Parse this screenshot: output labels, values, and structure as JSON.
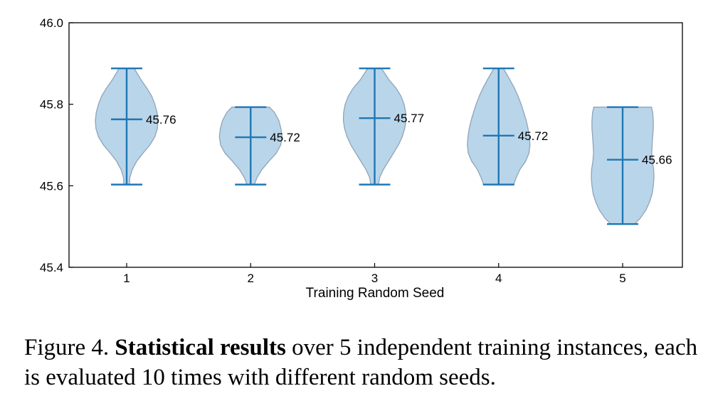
{
  "chart_data": {
    "type": "violin",
    "xlabel": "Training Random Seed",
    "ylabel": "",
    "ylim": [
      45.4,
      46.0
    ],
    "yticks": [
      "45.4",
      "45.6",
      "45.8",
      "46.0"
    ],
    "grid": false,
    "colors": {
      "body_fill": "#b9d5ea",
      "body_edge": "#8fa4b8",
      "lines": "#1f77b4"
    },
    "violins": [
      {
        "category": "1",
        "min": 45.603,
        "max": 45.888,
        "median": 45.763,
        "median_label": "45.76",
        "density": [
          [
            45.603,
            0.09
          ],
          [
            45.62,
            0.1
          ],
          [
            45.64,
            0.18
          ],
          [
            45.66,
            0.32
          ],
          [
            45.68,
            0.52
          ],
          [
            45.7,
            0.74
          ],
          [
            45.72,
            0.9
          ],
          [
            45.74,
            0.98
          ],
          [
            45.76,
            1.0
          ],
          [
            45.78,
            0.97
          ],
          [
            45.8,
            0.9
          ],
          [
            45.82,
            0.8
          ],
          [
            45.84,
            0.64
          ],
          [
            45.86,
            0.46
          ],
          [
            45.888,
            0.24
          ]
        ]
      },
      {
        "category": "2",
        "min": 45.603,
        "max": 45.793,
        "median": 45.719,
        "median_label": "45.72",
        "density": [
          [
            45.603,
            0.12
          ],
          [
            45.62,
            0.2
          ],
          [
            45.64,
            0.36
          ],
          [
            45.66,
            0.58
          ],
          [
            45.68,
            0.82
          ],
          [
            45.7,
            0.96
          ],
          [
            45.72,
            1.0
          ],
          [
            45.74,
            0.97
          ],
          [
            45.76,
            0.9
          ],
          [
            45.78,
            0.76
          ],
          [
            45.793,
            0.6
          ]
        ]
      },
      {
        "category": "3",
        "min": 45.603,
        "max": 45.888,
        "median": 45.766,
        "median_label": "45.77",
        "density": [
          [
            45.603,
            0.12
          ],
          [
            45.62,
            0.16
          ],
          [
            45.64,
            0.28
          ],
          [
            45.66,
            0.44
          ],
          [
            45.68,
            0.6
          ],
          [
            45.7,
            0.76
          ],
          [
            45.72,
            0.88
          ],
          [
            45.74,
            0.96
          ],
          [
            45.76,
            1.0
          ],
          [
            45.78,
            0.99
          ],
          [
            45.8,
            0.94
          ],
          [
            45.82,
            0.84
          ],
          [
            45.84,
            0.68
          ],
          [
            45.86,
            0.46
          ],
          [
            45.888,
            0.22
          ]
        ]
      },
      {
        "category": "4",
        "min": 45.603,
        "max": 45.888,
        "median": 45.723,
        "median_label": "45.72",
        "density": [
          [
            45.603,
            0.48
          ],
          [
            45.62,
            0.56
          ],
          [
            45.64,
            0.68
          ],
          [
            45.66,
            0.86
          ],
          [
            45.68,
            0.97
          ],
          [
            45.7,
            1.0
          ],
          [
            45.72,
            0.98
          ],
          [
            45.74,
            0.94
          ],
          [
            45.76,
            0.88
          ],
          [
            45.78,
            0.8
          ],
          [
            45.8,
            0.72
          ],
          [
            45.82,
            0.62
          ],
          [
            45.84,
            0.5
          ],
          [
            45.86,
            0.36
          ],
          [
            45.888,
            0.15
          ]
        ]
      },
      {
        "category": "5",
        "min": 45.506,
        "max": 45.793,
        "median": 45.664,
        "median_label": "45.66",
        "density": [
          [
            45.506,
            0.38
          ],
          [
            45.52,
            0.56
          ],
          [
            45.54,
            0.74
          ],
          [
            45.56,
            0.86
          ],
          [
            45.58,
            0.94
          ],
          [
            45.6,
            0.98
          ],
          [
            45.62,
            1.0
          ],
          [
            45.64,
            0.99
          ],
          [
            45.66,
            0.95
          ],
          [
            45.68,
            0.93
          ],
          [
            45.7,
            0.94
          ],
          [
            45.72,
            0.96
          ],
          [
            45.74,
            0.98
          ],
          [
            45.76,
            0.98
          ],
          [
            45.78,
            0.96
          ],
          [
            45.793,
            0.92
          ]
        ]
      }
    ]
  },
  "caption": {
    "prefix": "Figure 4. ",
    "bold": "Statistical results",
    "rest": " over 5 independent training instances, each is evaluated 10 times with different random seeds."
  }
}
